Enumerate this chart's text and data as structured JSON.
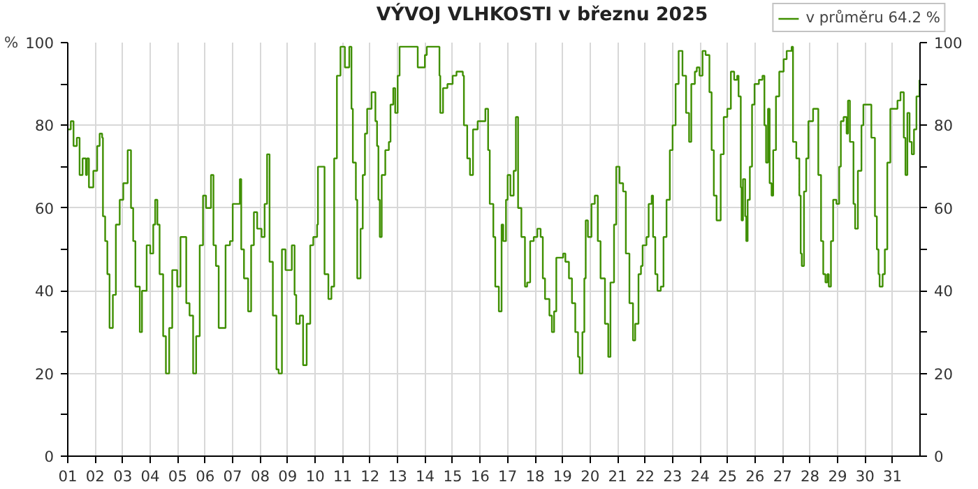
{
  "chart_data": {
    "type": "step",
    "title": "VÝVOJ VLHKOSTI v březnu 2025",
    "ylabel": "%",
    "legend": "top right",
    "grid": true,
    "xlim": [
      1,
      32
    ],
    "xticks": [
      {
        "value": 1,
        "label": "01"
      },
      {
        "value": 2,
        "label": "02"
      },
      {
        "value": 3,
        "label": "03"
      },
      {
        "value": 4,
        "label": "04"
      },
      {
        "value": 5,
        "label": "05"
      },
      {
        "value": 6,
        "label": "06"
      },
      {
        "value": 7,
        "label": "07"
      },
      {
        "value": 8,
        "label": "08"
      },
      {
        "value": 9,
        "label": "09"
      },
      {
        "value": 10,
        "label": "10"
      },
      {
        "value": 11,
        "label": "11"
      },
      {
        "value": 12,
        "label": "12"
      },
      {
        "value": 13,
        "label": "13"
      },
      {
        "value": 14,
        "label": "14"
      },
      {
        "value": 15,
        "label": "15"
      },
      {
        "value": 16,
        "label": "16"
      },
      {
        "value": 17,
        "label": "17"
      },
      {
        "value": 18,
        "label": "18"
      },
      {
        "value": 19,
        "label": "19"
      },
      {
        "value": 20,
        "label": "20"
      },
      {
        "value": 21,
        "label": "21"
      },
      {
        "value": 22,
        "label": "22"
      },
      {
        "value": 23,
        "label": "23"
      },
      {
        "value": 24,
        "label": "24"
      },
      {
        "value": 25,
        "label": "25"
      },
      {
        "value": 26,
        "label": "26"
      },
      {
        "value": 27,
        "label": "27"
      },
      {
        "value": 28,
        "label": "28"
      },
      {
        "value": 29,
        "label": "29"
      },
      {
        "value": 30,
        "label": "30"
      },
      {
        "value": 31,
        "label": "31"
      }
    ],
    "ylim": [
      0,
      100
    ],
    "yticks": [
      0,
      {
        "value": 10,
        "label": null
      },
      20,
      {
        "value": 30,
        "label": null
      },
      40,
      {
        "value": 50,
        "label": null
      },
      60,
      {
        "value": 70,
        "label": null
      },
      80,
      {
        "value": 90,
        "label": null
      },
      100
    ],
    "y2lim": [
      0,
      100
    ],
    "y2ticks": [
      0,
      {
        "value": 10,
        "label": null
      },
      20,
      {
        "value": 30,
        "label": null
      },
      40,
      {
        "value": 50,
        "label": null
      },
      60,
      {
        "value": 70,
        "label": null
      },
      80,
      {
        "value": 90,
        "label": null
      },
      100
    ],
    "series": [
      {
        "name": "v průměru 64.2 %",
        "color": "#3f8f00",
        "x": [
          1.0,
          1.11,
          1.21,
          1.33,
          1.43,
          1.54,
          1.66,
          1.7,
          1.77,
          1.93,
          2.07,
          2.16,
          2.25,
          2.28,
          2.36,
          2.44,
          2.52,
          2.64,
          2.75,
          2.89,
          3.02,
          3.18,
          3.25,
          3.3,
          3.38,
          3.46,
          3.62,
          3.7,
          3.87,
          4.0,
          4.11,
          4.18,
          4.26,
          4.34,
          4.47,
          4.57,
          4.69,
          4.8,
          4.98,
          5.1,
          5.2,
          5.31,
          5.43,
          5.56,
          5.67,
          5.8,
          5.92,
          6.03,
          6.21,
          6.3,
          6.39,
          6.49,
          6.6,
          6.74,
          6.9,
          7.0,
          7.15,
          7.26,
          7.31,
          7.41,
          7.56,
          7.67,
          7.77,
          7.89,
          8.05,
          8.16,
          8.25,
          8.34,
          8.46,
          8.59,
          8.67,
          8.79,
          8.92,
          9.03,
          9.15,
          9.25,
          9.31,
          9.44,
          9.56,
          9.69,
          9.82,
          9.93,
          10.07,
          10.1,
          10.23,
          10.34,
          10.48,
          10.59,
          10.69,
          10.79,
          10.92,
          11.08,
          11.24,
          11.32,
          11.37,
          11.48,
          11.53,
          11.65,
          11.73,
          11.81,
          11.89,
          12.05,
          12.19,
          12.25,
          12.3,
          12.35,
          12.42,
          12.55,
          12.68,
          12.74,
          12.84,
          12.91,
          13.0,
          13.07,
          13.66,
          13.73,
          13.99,
          14.06,
          14.43,
          14.52,
          14.55,
          14.65,
          14.81,
          15.0,
          15.14,
          15.37,
          15.41,
          15.53,
          15.63,
          15.74,
          15.91,
          16.07,
          16.19,
          16.29,
          16.35,
          16.48,
          16.55,
          16.68,
          16.78,
          16.84,
          16.94,
          17.0,
          17.1,
          17.22,
          17.3,
          17.38,
          17.5,
          17.63,
          17.71,
          17.82,
          17.95,
          18.08,
          18.2,
          18.28,
          18.36,
          18.52,
          18.61,
          18.69,
          18.77,
          18.9,
          19.02,
          19.1,
          19.23,
          19.34,
          19.46,
          19.56,
          19.62,
          19.72,
          19.79,
          19.84,
          19.92,
          20.05,
          20.17,
          20.21,
          20.28,
          20.38,
          20.54,
          20.66,
          20.74,
          20.87,
          20.95,
          21.07,
          21.2,
          21.3,
          21.43,
          21.56,
          21.64,
          21.76,
          21.85,
          21.91,
          22.05,
          22.13,
          22.24,
          22.29,
          22.37,
          22.45,
          22.57,
          22.67,
          22.78,
          22.9,
          23.0,
          23.11,
          23.22,
          23.36,
          23.49,
          23.6,
          23.68,
          23.81,
          23.88,
          23.98,
          24.09,
          24.2,
          24.3,
          24.34,
          24.42,
          24.5,
          24.6,
          24.75,
          24.86,
          24.99,
          25.12,
          25.24,
          25.35,
          25.4,
          25.48,
          25.51,
          25.56,
          25.64,
          25.68,
          25.73,
          25.81,
          25.89,
          25.98,
          26.14,
          26.27,
          26.34,
          26.4,
          26.47,
          26.53,
          26.6,
          26.66,
          26.76,
          26.88,
          27.04,
          27.15,
          27.33,
          27.38,
          27.5,
          27.61,
          27.66,
          27.7,
          27.78,
          27.86,
          27.94,
          28.11,
          28.24,
          28.3,
          28.4,
          28.48,
          28.56,
          28.63,
          28.68,
          28.76,
          28.84,
          28.96,
          29.06,
          29.12,
          29.22,
          29.33,
          29.38,
          29.45,
          29.58,
          29.64,
          29.74,
          29.87,
          29.94,
          30.1,
          30.23,
          30.36,
          30.43,
          30.49,
          30.53,
          30.64,
          30.72,
          30.81,
          30.92,
          31.05,
          31.18,
          31.29,
          31.41,
          31.47,
          31.54,
          31.62,
          31.7,
          31.78,
          31.87,
          31.98
        ],
        "values": [
          79,
          81,
          75,
          77,
          68,
          72,
          68,
          72,
          65,
          69,
          75,
          78,
          77,
          58,
          52,
          44,
          31,
          39,
          56,
          62,
          66,
          74,
          74,
          60,
          52,
          41,
          30,
          40,
          51,
          49,
          56,
          62,
          56,
          44,
          29,
          20,
          31,
          45,
          41,
          53,
          53,
          37,
          34,
          20,
          29,
          51,
          63,
          60,
          68,
          51,
          46,
          31,
          31,
          51,
          52,
          61,
          61,
          67,
          50,
          43,
          35,
          51,
          59,
          55,
          53,
          61,
          73,
          47,
          34,
          21,
          20,
          50,
          45,
          45,
          51,
          39,
          32,
          34,
          22,
          32,
          51,
          53,
          56,
          70,
          70,
          44,
          38,
          41,
          72,
          92,
          99,
          94,
          99,
          84,
          71,
          62,
          43,
          55,
          68,
          78,
          84,
          88,
          81,
          75,
          62,
          53,
          68,
          74,
          76,
          85,
          89,
          83,
          92,
          99,
          99,
          94,
          97,
          99,
          99,
          92,
          83,
          89,
          90,
          92,
          93,
          92,
          80,
          72,
          68,
          79,
          81,
          81,
          84,
          74,
          61,
          53,
          41,
          35,
          56,
          52,
          62,
          68,
          63,
          69,
          82,
          60,
          53,
          41,
          42,
          52,
          53,
          55,
          53,
          43,
          38,
          34,
          30,
          35,
          48,
          48,
          49,
          47,
          43,
          37,
          30,
          24,
          20,
          30,
          43,
          57,
          53,
          61,
          63,
          63,
          52,
          43,
          32,
          24,
          42,
          56,
          70,
          66,
          64,
          49,
          37,
          28,
          32,
          44,
          46,
          51,
          53,
          61,
          63,
          53,
          44,
          40,
          41,
          53,
          62,
          74,
          80,
          90,
          98,
          92,
          83,
          76,
          90,
          93,
          94,
          92,
          98,
          97,
          97,
          88,
          74,
          63,
          57,
          73,
          82,
          84,
          93,
          91,
          92,
          87,
          65,
          57,
          67,
          58,
          52,
          62,
          70,
          85,
          90,
          91,
          92,
          80,
          71,
          84,
          66,
          63,
          74,
          87,
          93,
          96,
          98,
          99,
          76,
          72,
          63,
          49,
          46,
          64,
          72,
          81,
          84,
          84,
          68,
          52,
          44,
          42,
          44,
          41,
          52,
          62,
          61,
          70,
          81,
          82,
          78,
          86,
          76,
          61,
          55,
          69,
          80,
          85,
          85,
          77,
          58,
          50,
          44,
          41,
          44,
          50,
          71,
          84,
          84,
          86,
          88,
          77,
          68,
          83,
          76,
          73,
          79,
          87,
          91
        ]
      }
    ]
  }
}
